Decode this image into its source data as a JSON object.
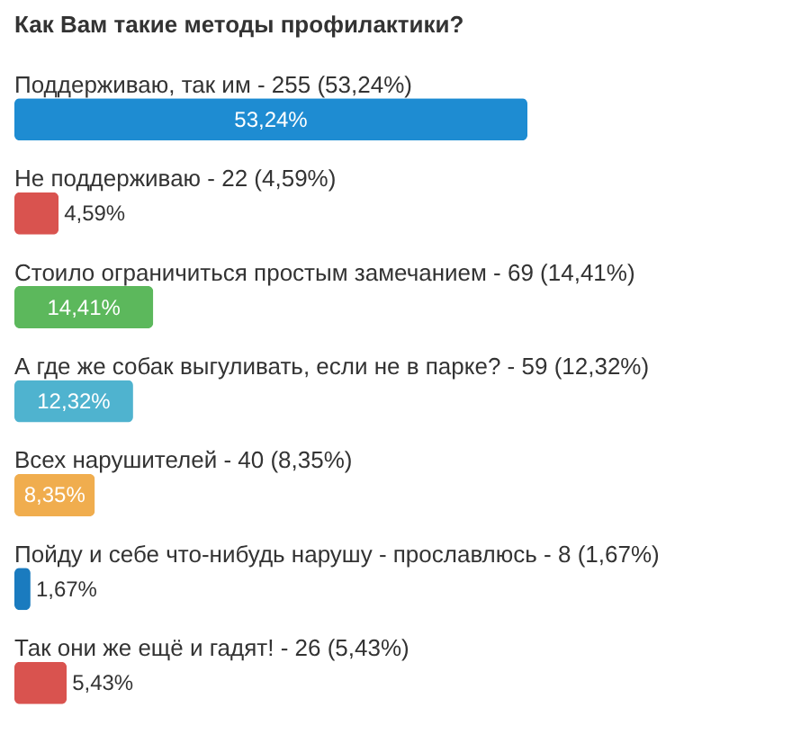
{
  "chart_data": {
    "type": "bar",
    "orientation": "horizontal",
    "title": "Как Вам такие методы профилактики?",
    "categories": [
      "Поддерживаю, так им - 255 (53,24%)",
      "Не поддерживаю - 22 (4,59%)",
      "Стоило ограничиться простым замечанием - 69 (14,41%)",
      "А где же собак выгуливать, если не в парке? - 59 (12,32%)",
      "Всех нарушителей - 40 (8,35%)",
      "Пойду и себе что-нибудь нарушу - прославлюсь - 8 (1,67%)",
      "Так они же ещё и гадят! - 26 (5,43%)"
    ],
    "values": [
      53.24,
      4.59,
      14.41,
      12.32,
      8.35,
      1.67,
      5.43
    ],
    "colors": [
      "#1e8cd2",
      "#d9534f",
      "#5cb85c",
      "#4fb3cf",
      "#f0ad4e",
      "#1a7bbf",
      "#d9534f"
    ],
    "value_labels": [
      "53,24%",
      "4,59%",
      "14,41%",
      "12,32%",
      "8,35%",
      "1,67%",
      "5,43%"
    ],
    "grid": false,
    "tick_labels": false
  }
}
